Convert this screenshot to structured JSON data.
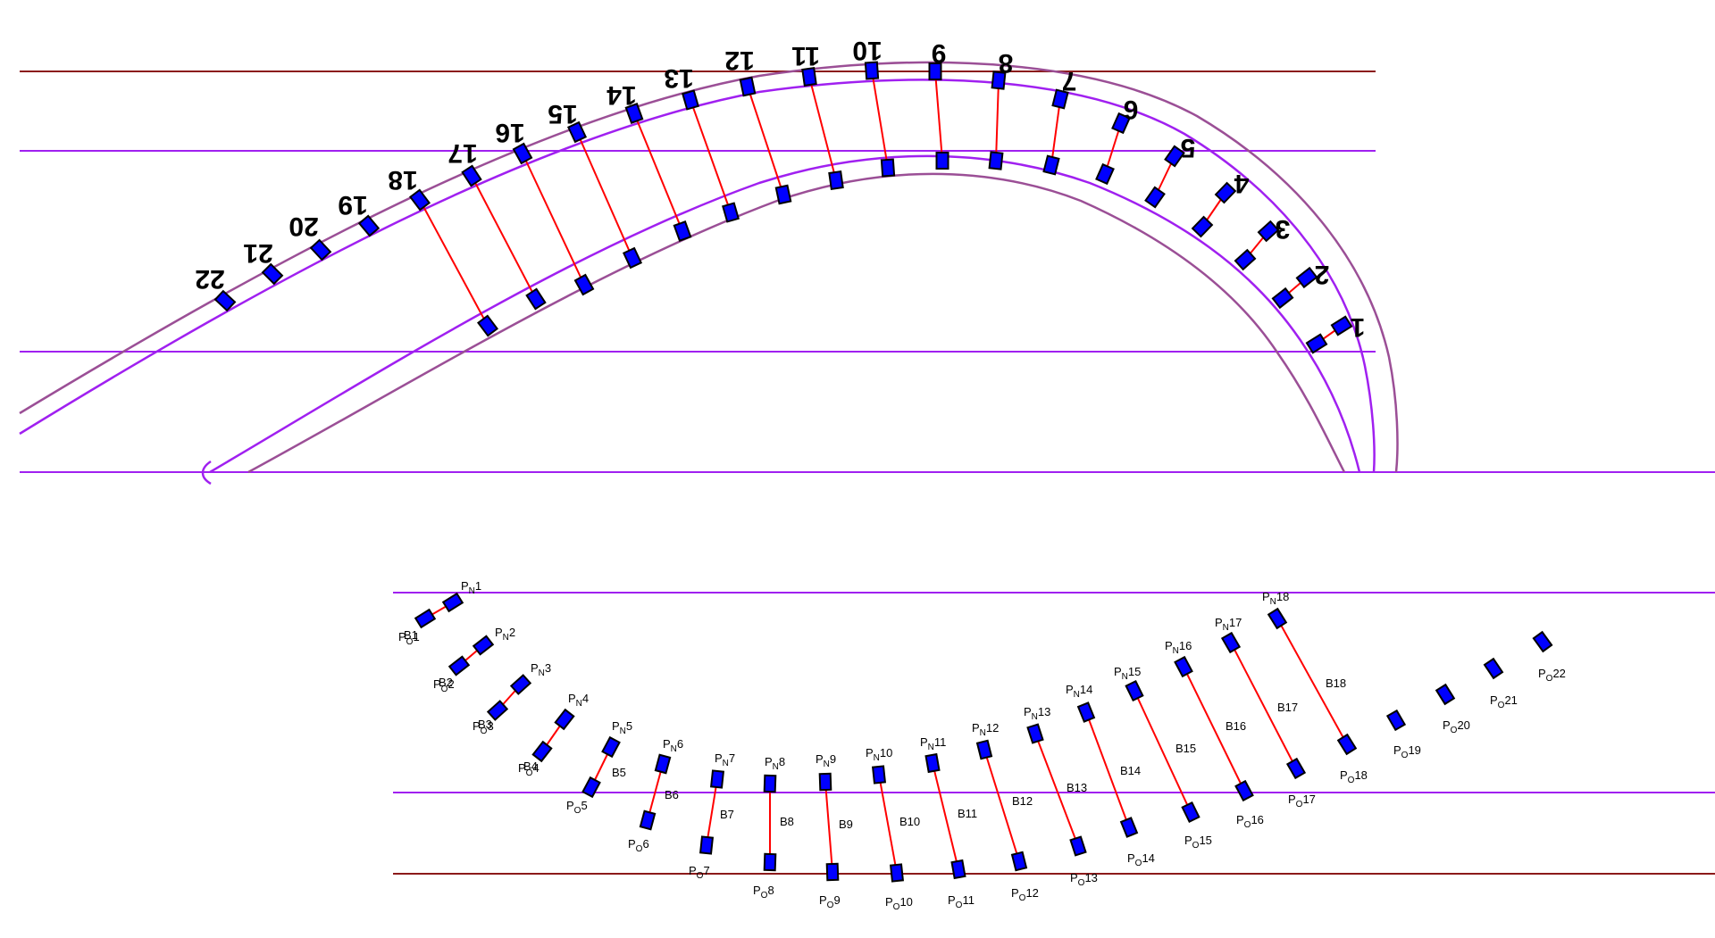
{
  "colors": {
    "outer_rail": "#9b4f96",
    "inner_rail": "#a020f0",
    "guide": "#a020f0",
    "boundary": "#8b1a1a",
    "tie": "#ff0000",
    "block_fill": "#0000ff",
    "block_stroke": "#000000"
  },
  "top_view": {
    "station_numbers": [
      "1",
      "2",
      "3",
      "4",
      "5",
      "6",
      "7",
      "8",
      "9",
      "10",
      "11",
      "12",
      "13",
      "14",
      "15",
      "16",
      "17",
      "18",
      "19",
      "20",
      "21",
      "22"
    ]
  },
  "bottom_view": {
    "n_prefix": "P",
    "n_sub": "N",
    "o_prefix": "P",
    "o_sub": "O",
    "beam_prefix": "B",
    "indices": [
      "1",
      "2",
      "3",
      "4",
      "5",
      "6",
      "7",
      "8",
      "9",
      "10",
      "11",
      "12",
      "13",
      "14",
      "15",
      "16",
      "17",
      "18"
    ],
    "lone_o": [
      "19",
      "20",
      "21",
      "22"
    ]
  }
}
